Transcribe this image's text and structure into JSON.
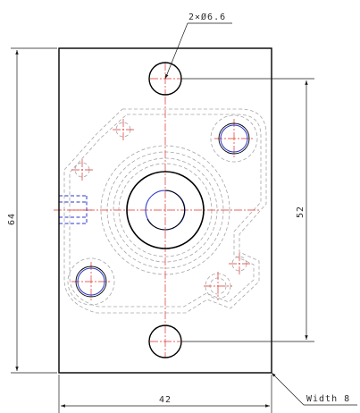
{
  "drawing": {
    "annotations": {
      "hole_callout": "2×Ø6.6",
      "width_callout": "Width 8",
      "dim_height": "64",
      "dim_width": "42",
      "dim_hole_spacing": "52"
    },
    "colors": {
      "outline": "#000000",
      "dimension": "#1a1a1a",
      "hidden": "#a6a6a6",
      "centerline": "#e0302a",
      "blue_feature": "#2a36c8",
      "background": "#ffffff"
    }
  }
}
